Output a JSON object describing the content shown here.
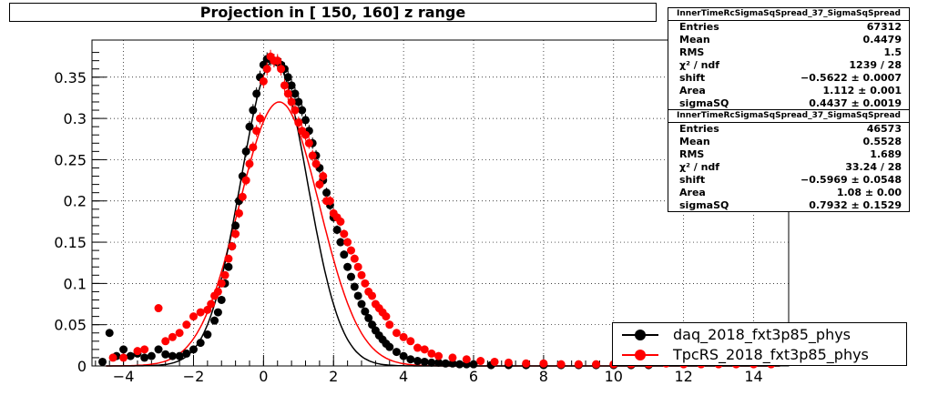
{
  "title": "Projection in [ 150, 160] z range",
  "stats": [
    {
      "header": "InnerTimeRcSigmaSqSpread_37_SigmaSqSpread",
      "rows": [
        {
          "label": "Entries",
          "value": "67312"
        },
        {
          "label": "Mean",
          "value": "0.4479"
        },
        {
          "label": "RMS",
          "value": "1.5"
        },
        {
          "label": "χ² / ndf",
          "value": "1239 / 28"
        },
        {
          "label": "shift",
          "value": "−0.5622 ± 0.0007"
        },
        {
          "label": "Area",
          "value": "1.112 ± 0.001"
        },
        {
          "label": "sigmaSQ",
          "value": "0.4437 ± 0.0019"
        }
      ]
    },
    {
      "header": "InnerTimeRcSigmaSqSpread_37_SigmaSqSpread",
      "rows": [
        {
          "label": "Entries",
          "value": "46573"
        },
        {
          "label": "Mean",
          "value": "0.5528"
        },
        {
          "label": "RMS",
          "value": "1.689"
        },
        {
          "label": "χ² / ndf",
          "value": "33.24 / 28"
        },
        {
          "label": "shift",
          "value": "−0.5969 ± 0.0548"
        },
        {
          "label": "Area",
          "value": "1.08 ± 0.00"
        },
        {
          "label": "sigmaSQ",
          "value": "0.7932 ± 0.1529"
        }
      ]
    }
  ],
  "legend": [
    {
      "label": "daq_2018_fxt3p85_phys",
      "color": "#000000"
    },
    {
      "label": "TpcRS_2018_fxt3p85_phys",
      "color": "#ff0000"
    }
  ],
  "chart_data": {
    "type": "scatter",
    "title": "Projection in [ 150, 160] z range",
    "xlim": [
      -4.9,
      15.0
    ],
    "ylim": [
      0,
      0.395
    ],
    "x_ticks": [
      -4,
      -2,
      0,
      2,
      4,
      6,
      8,
      10,
      12,
      14
    ],
    "y_ticks": [
      0,
      0.05,
      0.1,
      0.15,
      0.2,
      0.25,
      0.3,
      0.35
    ],
    "y_tick_labels": [
      "0",
      "0.05",
      "0.1",
      "0.15",
      "0.2",
      "0.25",
      "0.3",
      "0.35"
    ],
    "grid": true,
    "series": [
      {
        "name": "daq_2018_fxt3p85_phys",
        "color": "#000000",
        "x": [
          -4.6,
          -4.4,
          -4.2,
          -4.0,
          -3.8,
          -3.6,
          -3.4,
          -3.2,
          -3.0,
          -2.8,
          -2.6,
          -2.4,
          -2.2,
          -2.0,
          -1.8,
          -1.6,
          -1.4,
          -1.3,
          -1.2,
          -1.1,
          -1.0,
          -0.9,
          -0.8,
          -0.7,
          -0.6,
          -0.5,
          -0.4,
          -0.3,
          -0.2,
          -0.1,
          0.0,
          0.1,
          0.2,
          0.3,
          0.4,
          0.5,
          0.6,
          0.7,
          0.8,
          0.9,
          1.0,
          1.1,
          1.2,
          1.3,
          1.4,
          1.5,
          1.6,
          1.7,
          1.8,
          1.9,
          2.0,
          2.1,
          2.2,
          2.3,
          2.4,
          2.5,
          2.6,
          2.7,
          2.8,
          2.9,
          3.0,
          3.1,
          3.2,
          3.3,
          3.4,
          3.5,
          3.6,
          3.8,
          4.0,
          4.2,
          4.4,
          4.6,
          4.8,
          5.0,
          5.2,
          5.4,
          5.6,
          5.8,
          6.0,
          6.5,
          7.0,
          7.5,
          8.0,
          8.5,
          9.0,
          9.5,
          10.0,
          10.5,
          11.0
        ],
        "y": [
          0.005,
          0.04,
          0.012,
          0.02,
          0.012,
          0.015,
          0.01,
          0.012,
          0.02,
          0.014,
          0.012,
          0.012,
          0.015,
          0.02,
          0.028,
          0.038,
          0.055,
          0.065,
          0.08,
          0.1,
          0.12,
          0.145,
          0.17,
          0.2,
          0.23,
          0.26,
          0.29,
          0.31,
          0.33,
          0.35,
          0.365,
          0.372,
          0.372,
          0.37,
          0.368,
          0.365,
          0.36,
          0.35,
          0.34,
          0.33,
          0.32,
          0.31,
          0.298,
          0.285,
          0.27,
          0.255,
          0.24,
          0.225,
          0.21,
          0.195,
          0.18,
          0.165,
          0.15,
          0.135,
          0.12,
          0.108,
          0.096,
          0.085,
          0.075,
          0.066,
          0.058,
          0.05,
          0.043,
          0.037,
          0.032,
          0.027,
          0.023,
          0.017,
          0.012,
          0.008,
          0.006,
          0.005,
          0.004,
          0.004,
          0.003,
          0.003,
          0.002,
          0.002,
          0.002,
          0.001,
          0.001,
          0.001,
          0.001,
          0.001,
          0.001,
          0.001,
          0.001,
          0.001,
          0.001
        ]
      },
      {
        "name": "TpcRS_2018_fxt3p85_phys",
        "color": "#ff0000",
        "x": [
          -4.3,
          -4.0,
          -3.6,
          -3.4,
          -3.0,
          -2.8,
          -2.6,
          -2.4,
          -2.2,
          -2.0,
          -1.8,
          -1.6,
          -1.5,
          -1.4,
          -1.3,
          -1.2,
          -1.1,
          -1.0,
          -0.9,
          -0.8,
          -0.7,
          -0.6,
          -0.5,
          -0.4,
          -0.3,
          -0.2,
          -0.1,
          0.0,
          0.1,
          0.2,
          0.3,
          0.4,
          0.5,
          0.6,
          0.7,
          0.8,
          0.9,
          1.0,
          1.1,
          1.2,
          1.3,
          1.4,
          1.5,
          1.6,
          1.7,
          1.8,
          1.9,
          2.0,
          2.1,
          2.2,
          2.3,
          2.4,
          2.5,
          2.6,
          2.7,
          2.8,
          2.9,
          3.0,
          3.1,
          3.2,
          3.3,
          3.4,
          3.5,
          3.6,
          3.8,
          4.0,
          4.2,
          4.4,
          4.6,
          4.8,
          5.0,
          5.4,
          5.8,
          6.2,
          6.6,
          7.0,
          7.5,
          8.0,
          8.5,
          9.0,
          9.5,
          10.0,
          10.5,
          11.0,
          11.5,
          12.0,
          12.5,
          13.0,
          13.5,
          14.0,
          14.5
        ],
        "y": [
          0.01,
          0.01,
          0.018,
          0.02,
          0.07,
          0.03,
          0.035,
          0.04,
          0.05,
          0.06,
          0.065,
          0.068,
          0.075,
          0.085,
          0.09,
          0.1,
          0.11,
          0.13,
          0.145,
          0.16,
          0.185,
          0.205,
          0.225,
          0.245,
          0.265,
          0.285,
          0.3,
          0.345,
          0.36,
          0.375,
          0.37,
          0.37,
          0.36,
          0.34,
          0.33,
          0.32,
          0.31,
          0.295,
          0.285,
          0.28,
          0.27,
          0.255,
          0.245,
          0.22,
          0.23,
          0.2,
          0.2,
          0.185,
          0.18,
          0.175,
          0.16,
          0.15,
          0.14,
          0.13,
          0.12,
          0.11,
          0.1,
          0.09,
          0.085,
          0.075,
          0.07,
          0.065,
          0.06,
          0.05,
          0.04,
          0.035,
          0.03,
          0.022,
          0.02,
          0.015,
          0.012,
          0.01,
          0.008,
          0.006,
          0.005,
          0.004,
          0.003,
          0.003,
          0.002,
          0.002,
          0.002,
          0.002,
          0.002,
          0.002,
          0.003,
          0.002,
          0.002,
          0.002,
          0.002,
          0.002,
          0.002
        ]
      }
    ],
    "fit_curves": [
      {
        "series": "TpcRS_2018_fxt3p85_phys",
        "color": "#ff0000",
        "peak": 0.32,
        "mean": 0.45,
        "sigma": 1.15
      },
      {
        "series": "daq_2018_fxt3p85_phys",
        "color": "#000000",
        "peak": 0.37,
        "mean": 0.3,
        "sigma": 0.95
      }
    ]
  }
}
